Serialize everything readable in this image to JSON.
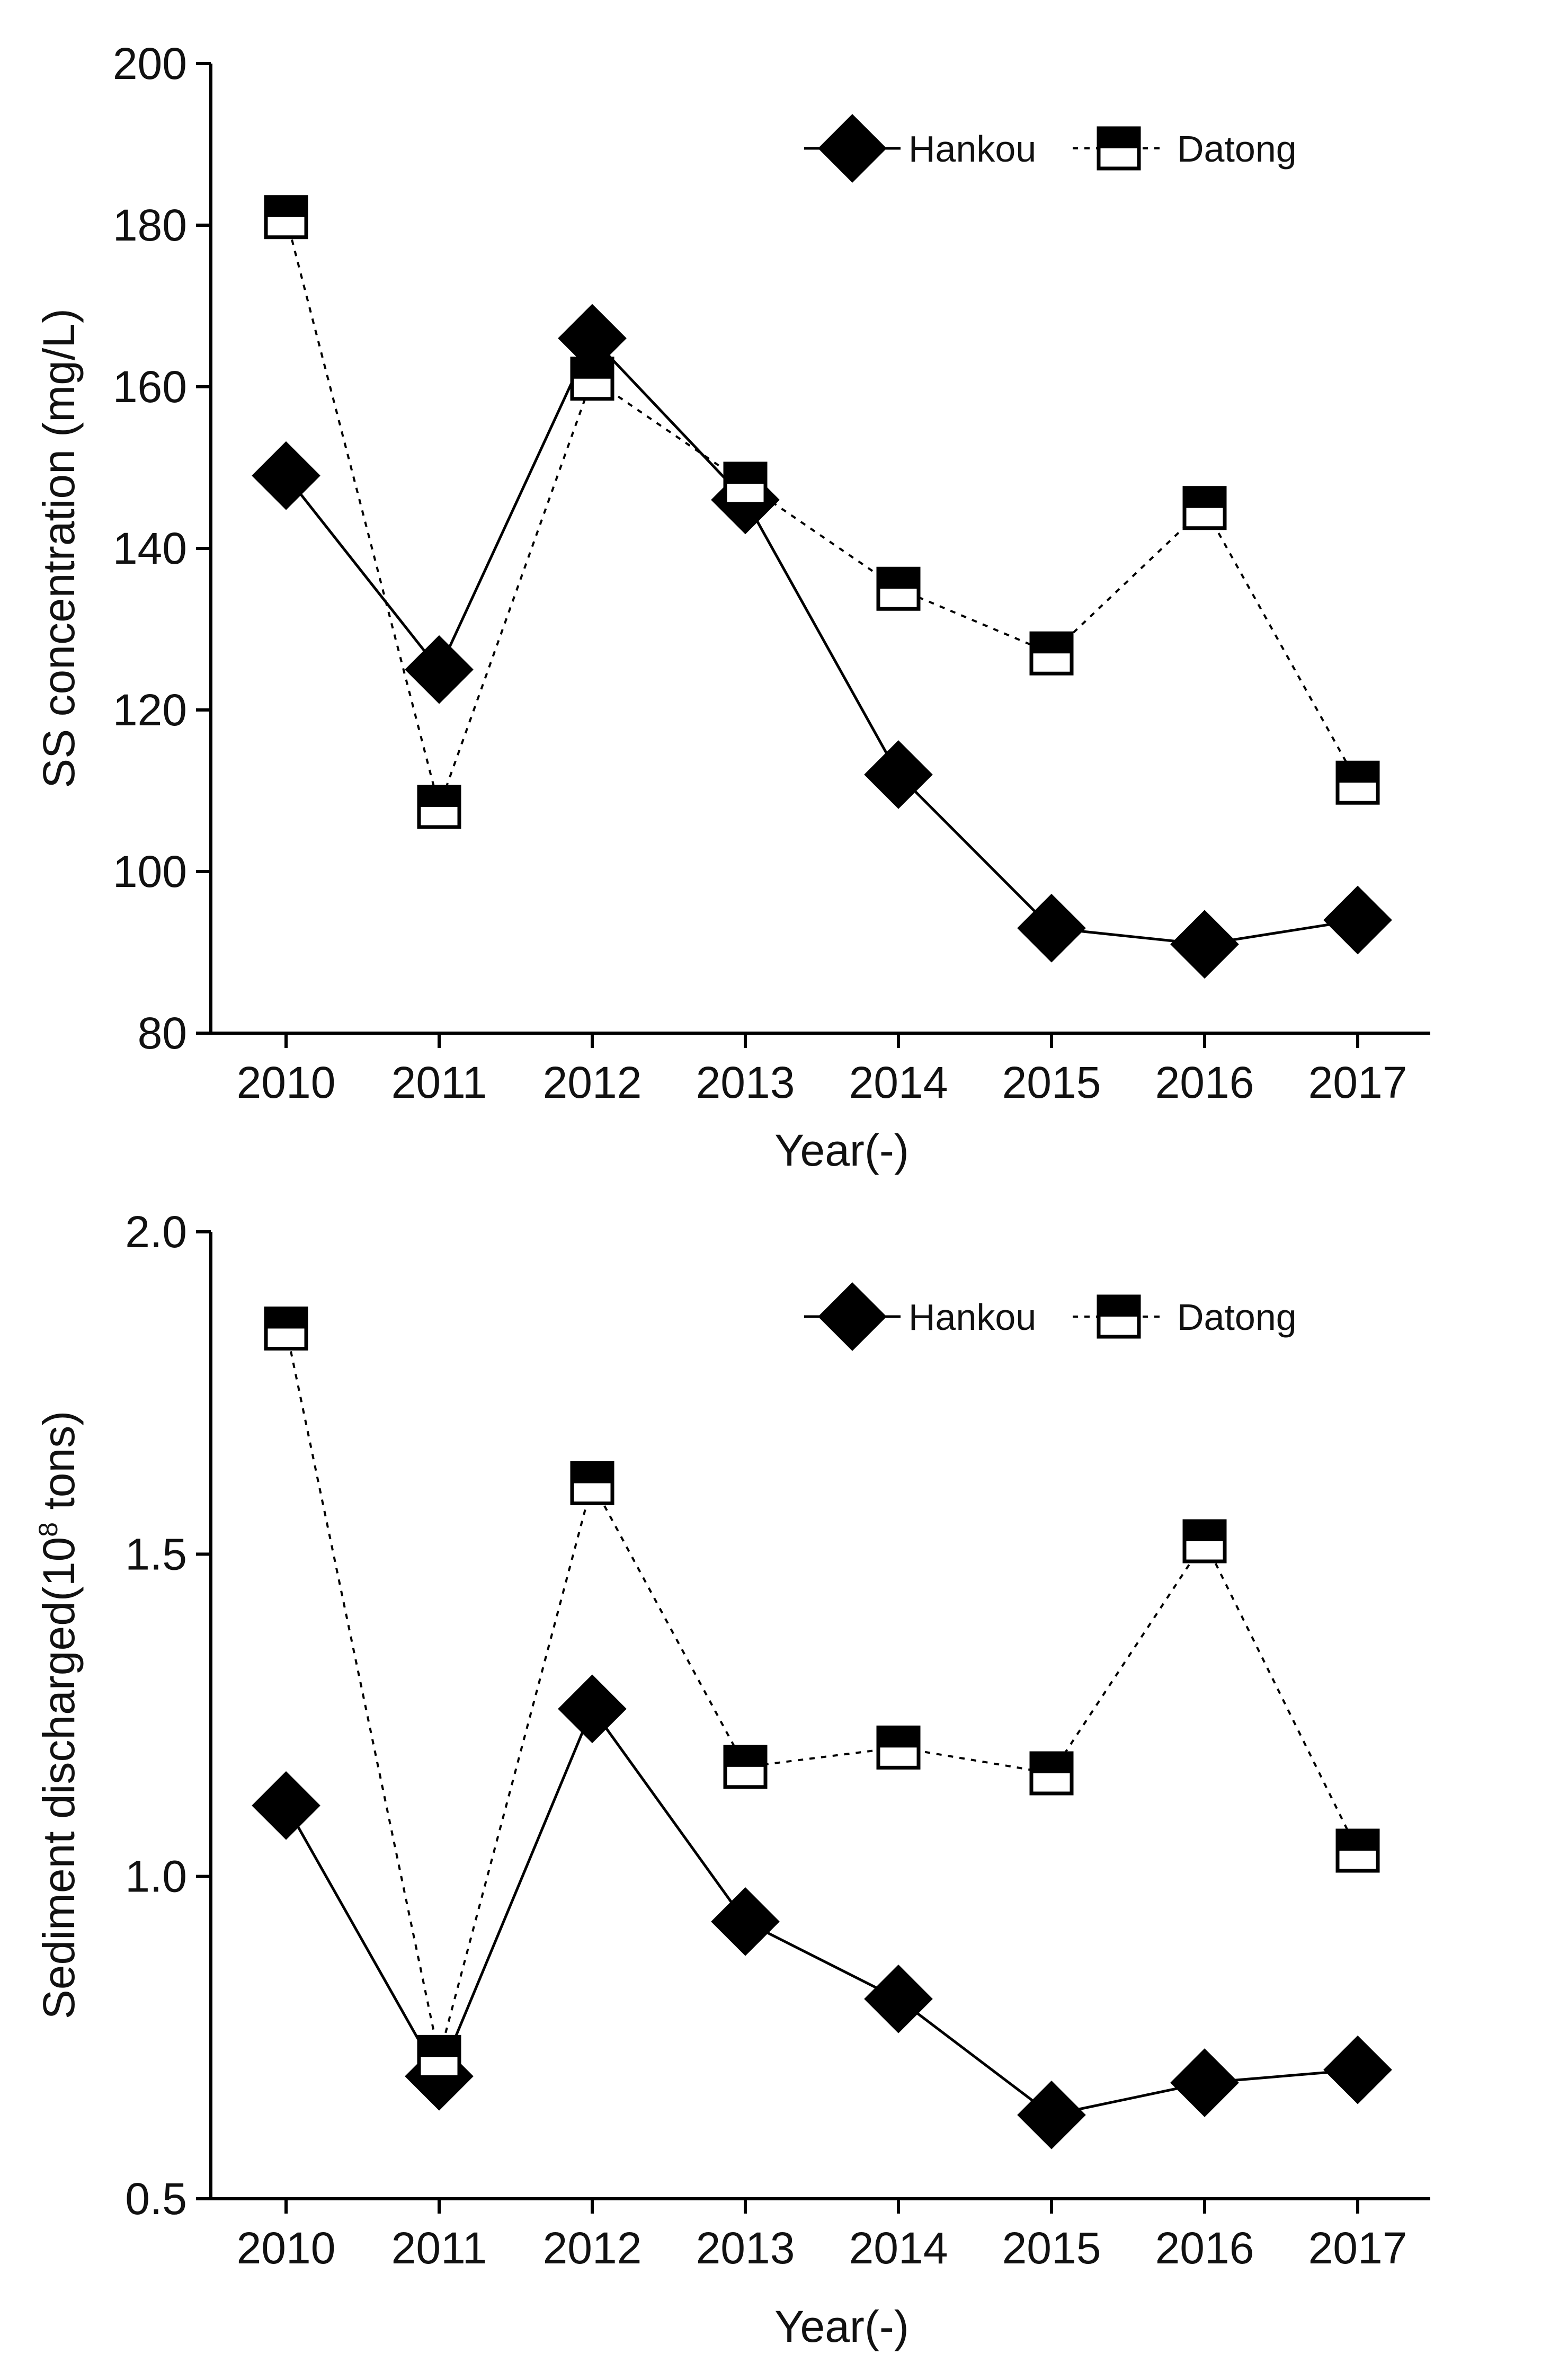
{
  "chart_data": [
    {
      "type": "line",
      "id": "ss-concentration",
      "title": "",
      "xlabel": "Year(-)",
      "ylabel": "SS concentration (mg/L)",
      "ylabel_parts": [
        "SS concentration (mg/L)"
      ],
      "ylim": [
        80,
        200
      ],
      "y_ticks": [
        80,
        100,
        120,
        140,
        160,
        180,
        200
      ],
      "y_tick_labels": [
        "80",
        "100",
        "120",
        "140",
        "160",
        "180",
        "200"
      ],
      "categories": [
        "2010",
        "2011",
        "2012",
        "2013",
        "2014",
        "2015",
        "2016",
        "2017"
      ],
      "legend_position": "top-right",
      "grid": false,
      "series": [
        {
          "name": "Hankou",
          "marker": "diamond",
          "line_style": "solid",
          "values": [
            149,
            125,
            166,
            146,
            112,
            93,
            91,
            94
          ]
        },
        {
          "name": "Datong",
          "marker": "half-filled-square",
          "line_style": "dotted",
          "values": [
            181,
            108,
            161,
            148,
            135,
            127,
            145,
            111
          ]
        }
      ]
    },
    {
      "type": "line",
      "id": "sediment-discharged",
      "title": "",
      "xlabel": "Year(-)",
      "ylabel": "Sediment discharged(10^8 tons)",
      "ylabel_parts": [
        "Sediment discharged(10",
        "8",
        " tons)"
      ],
      "ylim": [
        0.5,
        2.0
      ],
      "y_ticks": [
        0.5,
        1.0,
        1.5,
        2.0
      ],
      "y_tick_labels": [
        "0.5",
        "1.0",
        "1.5",
        "2.0"
      ],
      "categories": [
        "2010",
        "2011",
        "2012",
        "2013",
        "2014",
        "2015",
        "2016",
        "2017"
      ],
      "legend_position": "top-right",
      "grid": false,
      "series": [
        {
          "name": "Hankou",
          "marker": "diamond",
          "line_style": "solid",
          "values": [
            1.11,
            0.69,
            1.26,
            0.93,
            0.81,
            0.63,
            0.68,
            0.7
          ]
        },
        {
          "name": "Datong",
          "marker": "half-filled-square",
          "line_style": "dotted",
          "values": [
            1.85,
            0.72,
            1.61,
            1.17,
            1.2,
            1.16,
            1.52,
            1.04
          ]
        }
      ]
    }
  ]
}
